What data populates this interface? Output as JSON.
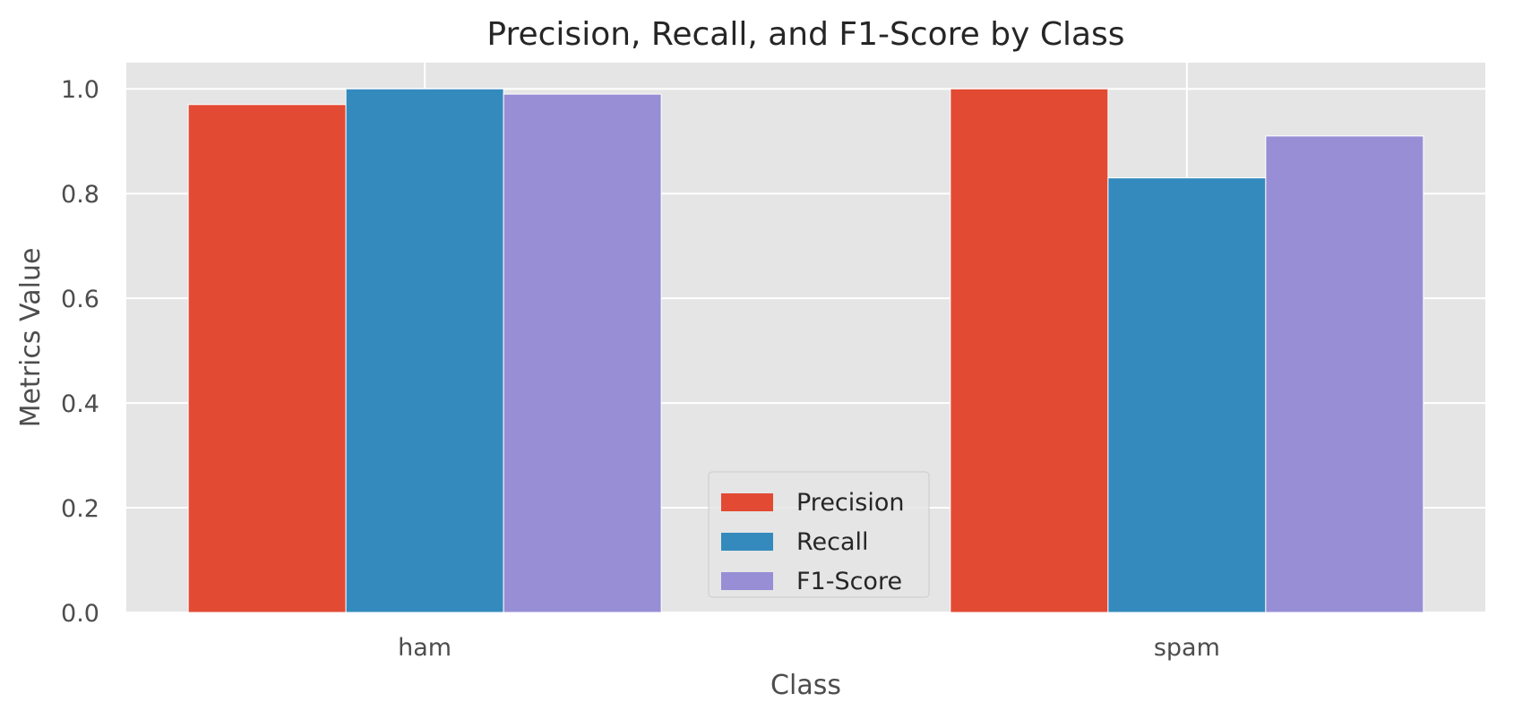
{
  "chart_data": {
    "type": "bar",
    "title": "Precision, Recall, and F1-Score by Class",
    "xlabel": "Class",
    "ylabel": "Metrics Value",
    "categories": [
      "ham",
      "spam"
    ],
    "series": [
      {
        "name": "Precision",
        "color": "#e24a33",
        "values": [
          0.97,
          1.0
        ]
      },
      {
        "name": "Recall",
        "color": "#348abd",
        "values": [
          1.0,
          0.83
        ]
      },
      {
        "name": "F1-Score",
        "color": "#988ed5",
        "values": [
          0.99,
          0.91
        ]
      }
    ],
    "ylim": [
      0,
      1.05
    ],
    "yticks": [
      "0.0",
      "0.2",
      "0.4",
      "0.6",
      "0.8",
      "1.0"
    ],
    "grid": true,
    "legend_position": "bottom-center"
  }
}
